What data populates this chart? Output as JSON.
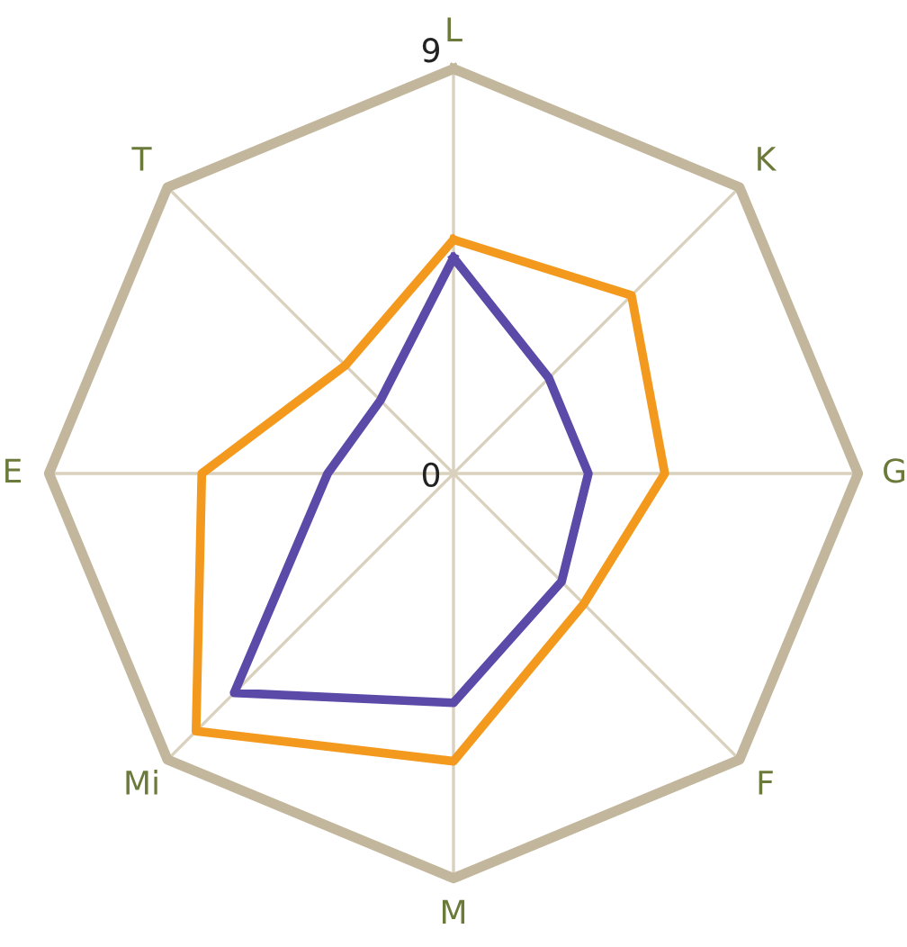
{
  "chart_data": {
    "type": "radar",
    "categories": [
      "L",
      "K",
      "G",
      "F",
      "M",
      "Mi",
      "E",
      "T"
    ],
    "ylim": [
      0,
      9
    ],
    "yticks": [
      0,
      9
    ],
    "grid": true,
    "series": [
      {
        "color": "#f39a1e",
        "values": [
          5.2,
          5.6,
          4.7,
          4.1,
          6.4,
          8.1,
          5.6,
          3.4
        ]
      },
      {
        "color": "#5b4aa8",
        "values": [
          4.8,
          3.0,
          3.0,
          3.4,
          5.1,
          6.9,
          2.8,
          2.3
        ]
      }
    ]
  }
}
